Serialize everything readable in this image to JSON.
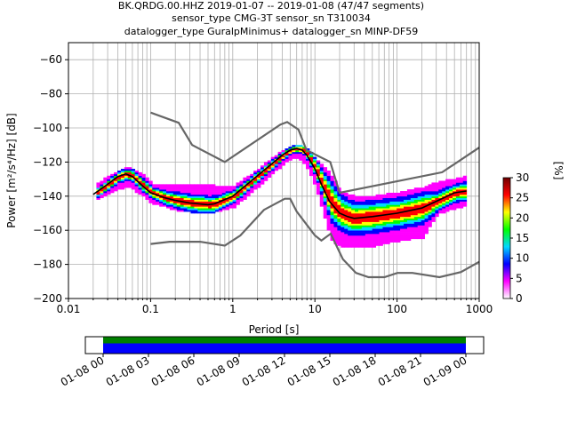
{
  "title_lines": [
    "BK.QRDG.00.HHZ   2019-01-07 -- 2019-01-08  (47/47 segments)",
    "sensor_type CMG-3T sensor_sn T310034",
    "datalogger_type GuralpMinimus+ datalogger_sn MINP-DF59"
  ],
  "chart_data": {
    "type": "heatmap",
    "xlabel": "Period [s]",
    "ylabel": "Power [m²/s⁴/Hz] [dB]",
    "xscale": "log",
    "xlim": [
      0.01,
      1000
    ],
    "ylim": [
      -200,
      -50
    ],
    "xticks": [
      {
        "value": 0.01,
        "label": "0.01"
      },
      {
        "value": 0.1,
        "label": "0.1"
      },
      {
        "value": 1,
        "label": "1"
      },
      {
        "value": 10,
        "label": "10"
      },
      {
        "value": 100,
        "label": "100"
      },
      {
        "value": 1000,
        "label": "1000"
      }
    ],
    "yticks": [
      {
        "value": -60,
        "label": "−60"
      },
      {
        "value": -80,
        "label": "−80"
      },
      {
        "value": -100,
        "label": "−100"
      },
      {
        "value": -120,
        "label": "−120"
      },
      {
        "value": -140,
        "label": "−140"
      },
      {
        "value": -160,
        "label": "−160"
      },
      {
        "value": -180,
        "label": "−180"
      },
      {
        "value": -200,
        "label": "−200"
      }
    ],
    "grid": true,
    "noise_models": {
      "nhnm": [
        [
          0.1,
          -91
        ],
        [
          0.22,
          -97
        ],
        [
          0.32,
          -110
        ],
        [
          0.8,
          -120
        ],
        [
          3.8,
          -98
        ],
        [
          4.6,
          -96.5
        ],
        [
          6.3,
          -101
        ],
        [
          7.9,
          -113
        ],
        [
          15.4,
          -120
        ],
        [
          20,
          -138
        ],
        [
          354,
          -126
        ],
        [
          1000,
          -111.5
        ]
      ],
      "nlnm": [
        [
          0.1,
          -168
        ],
        [
          0.17,
          -166.7
        ],
        [
          0.4,
          -166.7
        ],
        [
          0.8,
          -169
        ],
        [
          1.24,
          -163
        ],
        [
          2.4,
          -148
        ],
        [
          4.3,
          -141.5
        ],
        [
          5,
          -141.5
        ],
        [
          6,
          -149
        ],
        [
          10,
          -163
        ],
        [
          12,
          -166
        ],
        [
          15.6,
          -162
        ],
        [
          21.9,
          -177
        ],
        [
          31.6,
          -185
        ],
        [
          45,
          -187.5
        ],
        [
          70,
          -187.5
        ],
        [
          101,
          -185
        ],
        [
          154,
          -185
        ],
        [
          328,
          -187.5
        ],
        [
          600,
          -184.5
        ],
        [
          1000,
          -178.5
        ]
      ]
    },
    "mean_curve": [
      [
        0.02,
        -139
      ],
      [
        0.03,
        -133
      ],
      [
        0.04,
        -128.5
      ],
      [
        0.05,
        -127
      ],
      [
        0.06,
        -128.5
      ],
      [
        0.08,
        -134
      ],
      [
        0.1,
        -138
      ],
      [
        0.15,
        -141
      ],
      [
        0.2,
        -142.5
      ],
      [
        0.3,
        -144
      ],
      [
        0.5,
        -145
      ],
      [
        0.6,
        -144.5
      ],
      [
        0.8,
        -142
      ],
      [
        1,
        -140
      ],
      [
        1.5,
        -133
      ],
      [
        2,
        -128
      ],
      [
        3,
        -121
      ],
      [
        4,
        -116
      ],
      [
        5,
        -113
      ],
      [
        6,
        -112
      ],
      [
        7,
        -113
      ],
      [
        8,
        -116
      ],
      [
        10,
        -124
      ],
      [
        12,
        -133
      ],
      [
        15,
        -143
      ],
      [
        20,
        -150
      ],
      [
        25,
        -152
      ],
      [
        30,
        -153
      ],
      [
        50,
        -152
      ],
      [
        100,
        -150
      ],
      [
        200,
        -147
      ],
      [
        300,
        -143
      ],
      [
        500,
        -138
      ],
      [
        700,
        -137
      ]
    ],
    "density_range": [
      [
        0.018,
        -144,
        -136
      ],
      [
        0.03,
        -138,
        -128
      ],
      [
        0.05,
        -134,
        -123
      ],
      [
        0.08,
        -140,
        -128
      ],
      [
        0.1,
        -144,
        -133
      ],
      [
        0.2,
        -148,
        -133
      ],
      [
        0.4,
        -150,
        -133
      ],
      [
        0.6,
        -149,
        -134
      ],
      [
        1,
        -146,
        -134
      ],
      [
        2,
        -134,
        -124
      ],
      [
        3,
        -126,
        -117
      ],
      [
        4,
        -121,
        -113
      ],
      [
        5,
        -118,
        -111
      ],
      [
        6,
        -117,
        -110
      ],
      [
        8,
        -124,
        -113
      ],
      [
        10,
        -135,
        -119
      ],
      [
        15,
        -165,
        -127
      ],
      [
        20,
        -170,
        -138
      ],
      [
        30,
        -170,
        -140
      ],
      [
        50,
        -169,
        -140
      ],
      [
        100,
        -166,
        -138
      ],
      [
        200,
        -164,
        -135
      ],
      [
        300,
        -150,
        -132
      ],
      [
        500,
        -147,
        -130
      ],
      [
        700,
        -145,
        -128
      ]
    ],
    "colorbar": {
      "label": "[%]",
      "min": 0,
      "max": 30,
      "ticks": [
        {
          "value": 0,
          "label": "0"
        },
        {
          "value": 5,
          "label": "5"
        },
        {
          "value": 10,
          "label": "10"
        },
        {
          "value": 15,
          "label": "15"
        },
        {
          "value": 20,
          "label": "20"
        },
        {
          "value": 25,
          "label": "25"
        },
        {
          "value": 30,
          "label": "30"
        }
      ],
      "colors": [
        "#ffffff",
        "#ff00ff",
        "#0000ff",
        "#00d8ff",
        "#00ff00",
        "#ffff00",
        "#ff0000",
        "#6e0000"
      ]
    },
    "time_axis": {
      "ticks": [
        "01-08 00",
        "01-08 03",
        "01-08 06",
        "01-08 09",
        "01-08 12",
        "01-08 15",
        "01-08 18",
        "01-08 21",
        "01-09 00"
      ],
      "coverage_colors": [
        "#008000",
        "#0000ff"
      ]
    }
  }
}
